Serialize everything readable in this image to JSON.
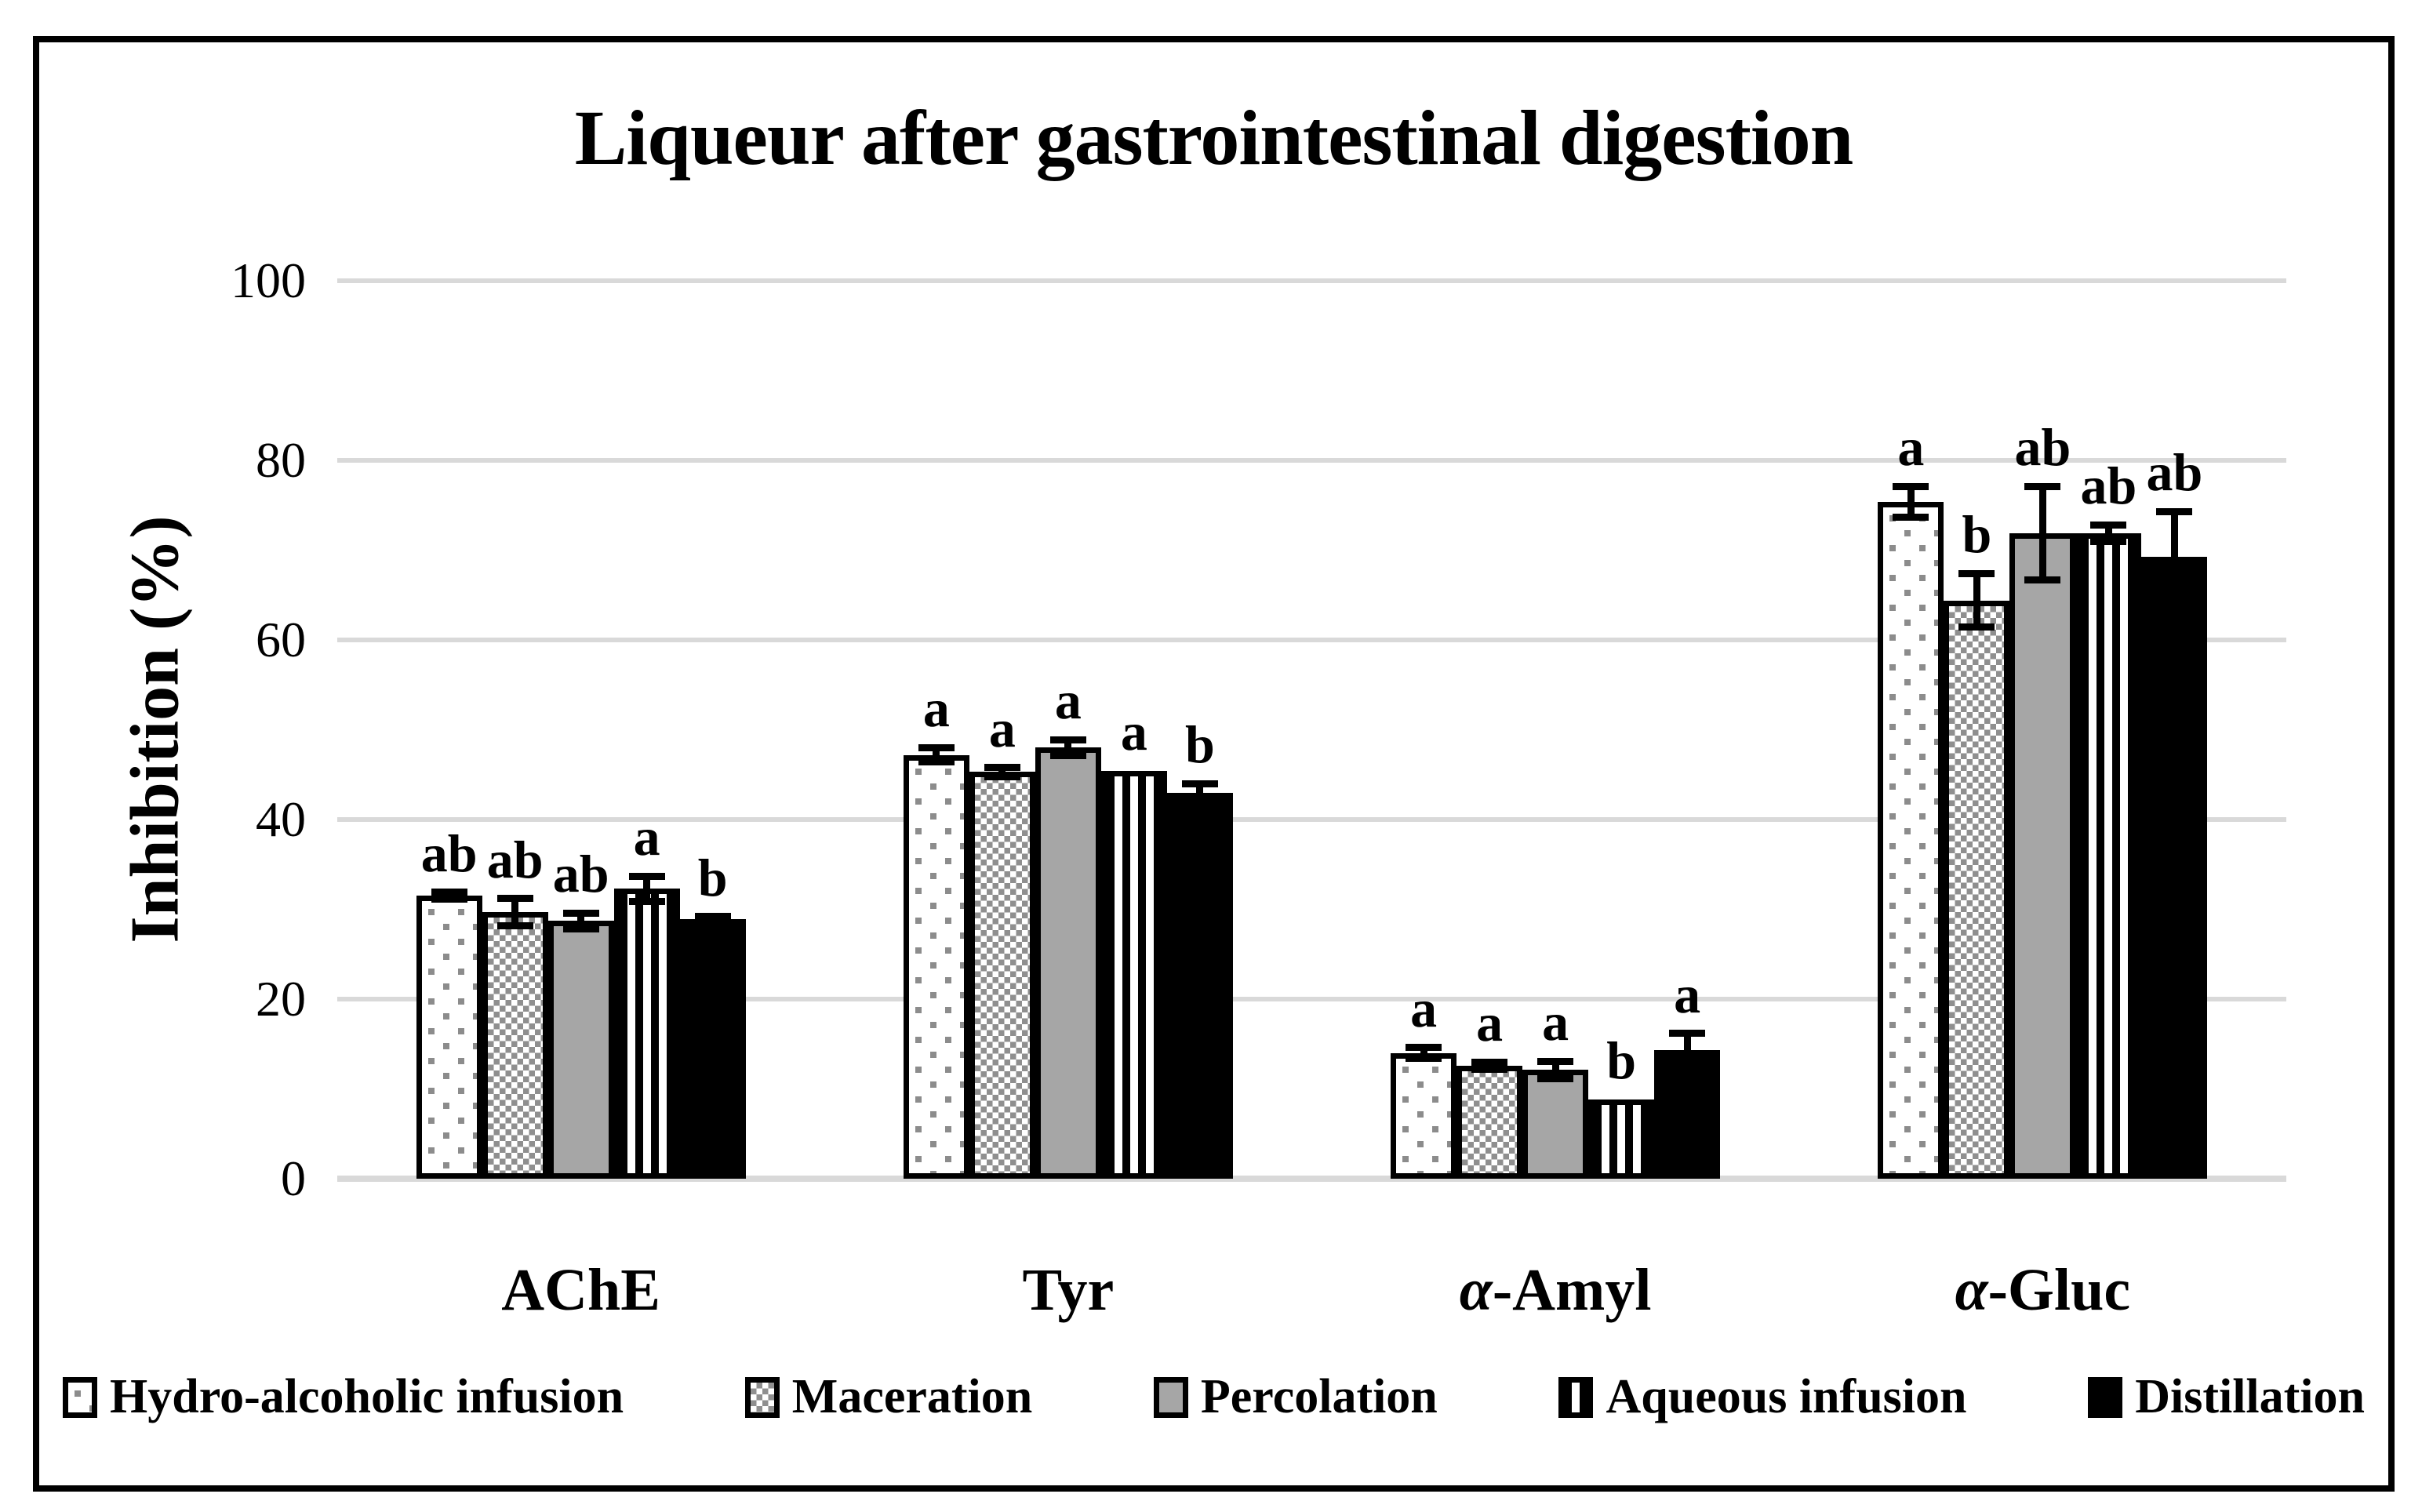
{
  "title": "Liqueur after gastrointestinal digestion",
  "colors": {
    "gridline": "#d9d9d9",
    "frame_border": "#000000",
    "pattern_gray": "#8f8f8f",
    "solid_gray": "#a6a6a6",
    "black": "#000000",
    "white": "#ffffff"
  },
  "chart_data": {
    "type": "bar",
    "title": "Liqueur after gastrointestinal digestion",
    "xlabel": "",
    "ylabel": "Inhibition (%)",
    "ylim": [
      0,
      100
    ],
    "yticks": [
      0,
      20,
      40,
      60,
      80,
      100
    ],
    "grid": "horizontal",
    "legend_position": "bottom",
    "categories": [
      "AChE",
      "Tyr",
      "α-Amyl",
      "α-Gluc"
    ],
    "series": [
      {
        "name": "Hydro-alcoholic infusion",
        "pattern": "dot",
        "values": [
          31.5,
          47.2,
          14.0,
          75.4
        ],
        "errors": [
          0.4,
          0.8,
          0.6,
          1.7
        ],
        "letters": [
          "ab",
          "a",
          "a",
          "a"
        ]
      },
      {
        "name": "Maceration",
        "pattern": "check",
        "values": [
          29.7,
          45.3,
          12.6,
          64.4
        ],
        "errors": [
          1.5,
          0.5,
          0.4,
          3.0
        ],
        "letters": [
          "ab",
          "a",
          "a",
          "b"
        ]
      },
      {
        "name": "Percolation",
        "pattern": "gray",
        "values": [
          28.7,
          48.0,
          12.1,
          71.9
        ],
        "errors": [
          0.9,
          0.9,
          1.0,
          5.2
        ],
        "letters": [
          "ab",
          "a",
          "a",
          "ab"
        ]
      },
      {
        "name": "Aqueous infusion",
        "pattern": "vstripe",
        "values": [
          32.3,
          45.4,
          8.8,
          71.9
        ],
        "errors": [
          1.4,
          0,
          0,
          0.9
        ],
        "letters": [
          "a",
          "a",
          "b",
          "ab"
        ]
      },
      {
        "name": "Distillation",
        "pattern": "black",
        "values": [
          28.9,
          43.0,
          14.3,
          69.3
        ],
        "errors": [
          0.3,
          1.0,
          1.9,
          5.0
        ],
        "letters": [
          "b",
          "b",
          "a",
          "ab"
        ]
      }
    ]
  }
}
